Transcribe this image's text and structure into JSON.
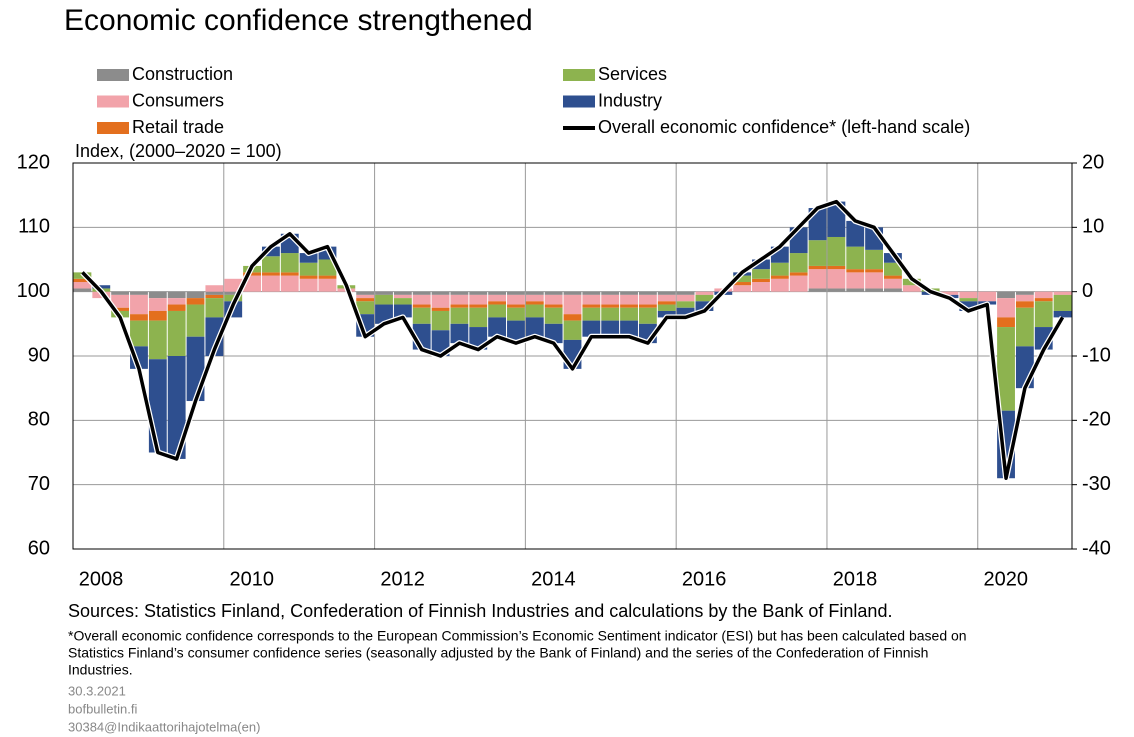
{
  "chart_data": {
    "type": "bar",
    "title": "Economic confidence strengthened",
    "ylabel": "Index, (2000–2020 = 100)",
    "categories": [
      "2008",
      null,
      null,
      null,
      null,
      null,
      null,
      null,
      "2010",
      null,
      null,
      null,
      null,
      null,
      null,
      null,
      "2012",
      null,
      null,
      null,
      null,
      null,
      null,
      null,
      "2014",
      null,
      null,
      null,
      null,
      null,
      null,
      null,
      "2016",
      null,
      null,
      null,
      null,
      null,
      null,
      null,
      "2018",
      null,
      null,
      null,
      null,
      null,
      null,
      null,
      "2020",
      null,
      null,
      null,
      null
    ],
    "ylim": [
      60,
      120
    ],
    "yticks": [
      60,
      70,
      80,
      90,
      100,
      110,
      120
    ],
    "y2lim": [
      -40,
      20
    ],
    "y2ticks": [
      -40,
      -30,
      -20,
      -10,
      0,
      10,
      20
    ],
    "stacked": true,
    "grid": true,
    "series": [
      {
        "name": "Construction",
        "color": "#8c8c8c",
        "axis": "y2",
        "values": [
          0.5,
          0,
          -0.5,
          -0.5,
          -1,
          -1,
          -1,
          -0.5,
          -0.5,
          0,
          0,
          0,
          0,
          0,
          0,
          -0.5,
          -0.5,
          -0.5,
          -0.5,
          -0.5,
          -0.5,
          -0.5,
          -0.5,
          -0.5,
          -0.5,
          -0.5,
          -0.5,
          -0.5,
          -0.5,
          -0.5,
          -0.5,
          -0.5,
          -0.5,
          0,
          0,
          0,
          0,
          0,
          0,
          0.5,
          0.5,
          0.5,
          0.5,
          0.5,
          0,
          0,
          0,
          0,
          0,
          -1,
          -0.5,
          0,
          0
        ]
      },
      {
        "name": "Consumers",
        "color": "#f2a3aa",
        "axis": "y2",
        "values": [
          1,
          -1,
          -2,
          -3,
          -2,
          -1,
          0,
          1,
          2,
          2.5,
          2.5,
          2.5,
          2,
          2,
          0.5,
          -0.5,
          0,
          -0.5,
          -1.5,
          -2,
          -1.5,
          -1.5,
          -1,
          -1.5,
          -1,
          -1.5,
          -3,
          -1.5,
          -1.5,
          -1.5,
          -1.5,
          -1,
          -1,
          -0.5,
          0.5,
          1,
          1.5,
          2,
          2.5,
          3,
          3,
          2.5,
          2.5,
          1.5,
          1,
          0,
          -0.5,
          -1,
          -1.5,
          -3,
          -1,
          -1,
          -0.5
        ]
      },
      {
        "name": "Retail trade",
        "color": "#e36f1e",
        "axis": "y2",
        "values": [
          0.5,
          0,
          -0.5,
          -1,
          -1.5,
          -1,
          -1,
          -0.5,
          0,
          0.5,
          0.5,
          0.5,
          0.5,
          0.5,
          0,
          -0.5,
          0,
          0,
          -0.5,
          -0.5,
          -0.5,
          -0.5,
          -0.5,
          -0.5,
          -0.5,
          -0.5,
          -1,
          -0.5,
          -0.5,
          -0.5,
          -0.5,
          -0.5,
          0,
          0,
          0,
          0.5,
          0.5,
          0.5,
          0.5,
          0.5,
          0.5,
          0.5,
          0.5,
          0.5,
          0,
          0,
          0,
          0,
          0,
          -1.5,
          -1,
          -0.5,
          0
        ]
      },
      {
        "name": "Services",
        "color": "#8db34f",
        "axis": "y2",
        "values": [
          1,
          0.5,
          -1,
          -4,
          -6,
          -7,
          -5,
          -3,
          -1,
          1,
          2.5,
          3,
          2,
          2.5,
          0.5,
          -2,
          -1.5,
          -1,
          -2.5,
          -3,
          -2.5,
          -3,
          -2,
          -2,
          -2,
          -2.5,
          -3,
          -2,
          -2,
          -2,
          -2.5,
          -1,
          -1,
          -1,
          0,
          1,
          1.5,
          2,
          3,
          4,
          4.5,
          3.5,
          3,
          2,
          1,
          0.5,
          0,
          -0.5,
          0,
          -13,
          -6,
          -4,
          -2.5
        ]
      },
      {
        "name": "Industry",
        "color": "#2e4f8f",
        "axis": "y2",
        "values": [
          0,
          0.5,
          0,
          -3.5,
          -14.5,
          -16,
          -10,
          -6,
          -2.5,
          0,
          1.5,
          3,
          1.5,
          2,
          0,
          -3.5,
          -3,
          -2,
          -4,
          -4,
          -3,
          -3.5,
          -3,
          -3.5,
          -3,
          -3,
          -4.5,
          -2.5,
          -2.5,
          -2.5,
          -3,
          -1,
          -1.5,
          -1.5,
          -0.5,
          0.5,
          1.5,
          2.5,
          4,
          5,
          5.5,
          4,
          3.5,
          1.5,
          0,
          -0.5,
          -0.5,
          -1.5,
          -0.5,
          -10.5,
          -6.5,
          -3.5,
          -1
        ]
      },
      {
        "name": "Overall economic confidence*  (left-hand scale)",
        "color": "#000000",
        "type": "line",
        "values": [
          103,
          100,
          96,
          88,
          75,
          74,
          83,
          91,
          98,
          104,
          107,
          109,
          106,
          107,
          101,
          93,
          95,
          96,
          91,
          90,
          92,
          91,
          93,
          92,
          93,
          92,
          88,
          93,
          93,
          93,
          92,
          96,
          96,
          97,
          100,
          103,
          105,
          107,
          110,
          113,
          114,
          111,
          110,
          106,
          102,
          100,
          99,
          97,
          98,
          71,
          85,
          91,
          96
        ]
      }
    ],
    "source": "Sources: Statistics Finland, Confederation of Finnish Industries and calculations by the Bank of Finland.",
    "footnote": [
      "*Overall economic confidence corresponds to the European Commission’s Economic Sentiment indicator (ESI) but has been calculated based on",
      "Statistics Finland’s consumer confidence series (seasonally adjusted by the Bank of Finland) and the series of the Confederation of Finnish",
      "Industries."
    ],
    "meta": [
      "30.3.2021",
      "bofbulletin.fi",
      "30384@Indikaattorihajotelma(en)"
    ]
  }
}
